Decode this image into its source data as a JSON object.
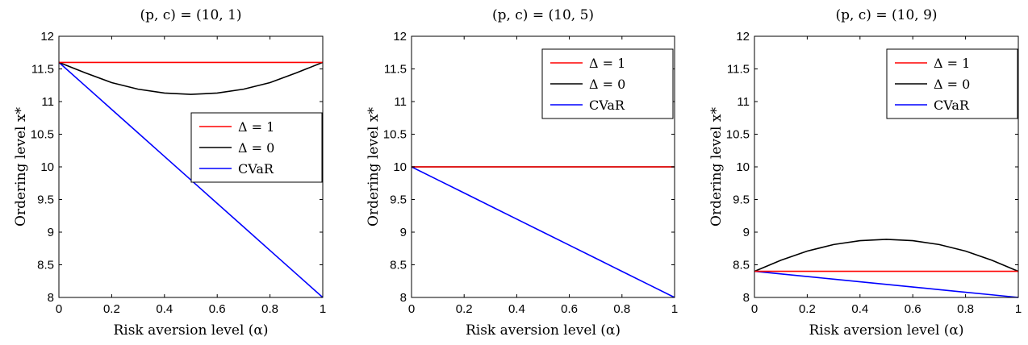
{
  "chart_data": [
    {
      "type": "line",
      "title": "(p, c) = (10, 1)",
      "xlabel": "Risk aversion level (α)",
      "ylabel": "Ordering level x*",
      "xlim": [
        0,
        1
      ],
      "ylim": [
        8,
        12
      ],
      "xticks": [
        "0",
        "0.2",
        "0.4",
        "0.6",
        "0.8",
        "1"
      ],
      "yticks": [
        "8",
        "8.5",
        "9",
        "9.5",
        "10",
        "10.5",
        "11",
        "11.5",
        "12"
      ],
      "grid": false,
      "legend_position": "center-right",
      "x": [
        0,
        0.1,
        0.2,
        0.3,
        0.4,
        0.5,
        0.6,
        0.7,
        0.8,
        0.9,
        1
      ],
      "series": [
        {
          "name": "Δ = 1",
          "color": "#ff0000",
          "values": [
            11.6,
            11.6,
            11.6,
            11.6,
            11.6,
            11.6,
            11.6,
            11.6,
            11.6,
            11.6,
            11.6
          ]
        },
        {
          "name": "Δ = 0",
          "color": "#000000",
          "values": [
            11.6,
            11.44,
            11.29,
            11.19,
            11.13,
            11.11,
            11.13,
            11.19,
            11.29,
            11.44,
            11.6
          ]
        },
        {
          "name": "CVaR",
          "color": "#0000ff",
          "values": [
            11.6,
            11.24,
            10.88,
            10.52,
            10.16,
            9.8,
            9.44,
            9.08,
            8.72,
            8.36,
            8.0
          ]
        }
      ]
    },
    {
      "type": "line",
      "title": "(p, c) = (10, 5)",
      "xlabel": "Risk aversion level (α)",
      "ylabel": "Ordering level x*",
      "xlim": [
        0,
        1
      ],
      "ylim": [
        8,
        12
      ],
      "xticks": [
        "0",
        "0.2",
        "0.4",
        "0.6",
        "0.8",
        "1"
      ],
      "yticks": [
        "8",
        "8.5",
        "9",
        "9.5",
        "10",
        "10.5",
        "11",
        "11.5",
        "12"
      ],
      "grid": false,
      "legend_position": "top-right",
      "x": [
        0,
        0.1,
        0.2,
        0.3,
        0.4,
        0.5,
        0.6,
        0.7,
        0.8,
        0.9,
        1
      ],
      "series": [
        {
          "name": "Δ = 1",
          "color": "#ff0000",
          "values": [
            10,
            10,
            10,
            10,
            10,
            10,
            10,
            10,
            10,
            10,
            10
          ]
        },
        {
          "name": "Δ = 0",
          "color": "#000000",
          "values": [
            10,
            10,
            10,
            10,
            10,
            10,
            10,
            10,
            10,
            10,
            10
          ]
        },
        {
          "name": "CVaR",
          "color": "#0000ff",
          "values": [
            10,
            9.8,
            9.6,
            9.4,
            9.2,
            9.0,
            8.8,
            8.6,
            8.4,
            8.2,
            8.0
          ]
        }
      ]
    },
    {
      "type": "line",
      "title": "(p, c) = (10, 9)",
      "xlabel": "Risk aversion level (α)",
      "ylabel": "Ordering level x*",
      "xlim": [
        0,
        1
      ],
      "ylim": [
        8,
        12
      ],
      "xticks": [
        "0",
        "0.2",
        "0.4",
        "0.6",
        "0.8",
        "1"
      ],
      "yticks": [
        "8",
        "8.5",
        "9",
        "9.5",
        "10",
        "10.5",
        "11",
        "11.5",
        "12"
      ],
      "grid": false,
      "legend_position": "top-right",
      "x": [
        0,
        0.1,
        0.2,
        0.3,
        0.4,
        0.5,
        0.6,
        0.7,
        0.8,
        0.9,
        1
      ],
      "series": [
        {
          "name": "Δ = 1",
          "color": "#ff0000",
          "values": [
            8.4,
            8.4,
            8.4,
            8.4,
            8.4,
            8.4,
            8.4,
            8.4,
            8.4,
            8.4,
            8.4
          ]
        },
        {
          "name": "Δ = 0",
          "color": "#000000",
          "values": [
            8.4,
            8.57,
            8.71,
            8.81,
            8.87,
            8.89,
            8.87,
            8.81,
            8.71,
            8.57,
            8.4
          ]
        },
        {
          "name": "CVaR",
          "color": "#0000ff",
          "values": [
            8.4,
            8.36,
            8.32,
            8.28,
            8.24,
            8.2,
            8.16,
            8.12,
            8.08,
            8.04,
            8.0
          ]
        }
      ]
    }
  ]
}
